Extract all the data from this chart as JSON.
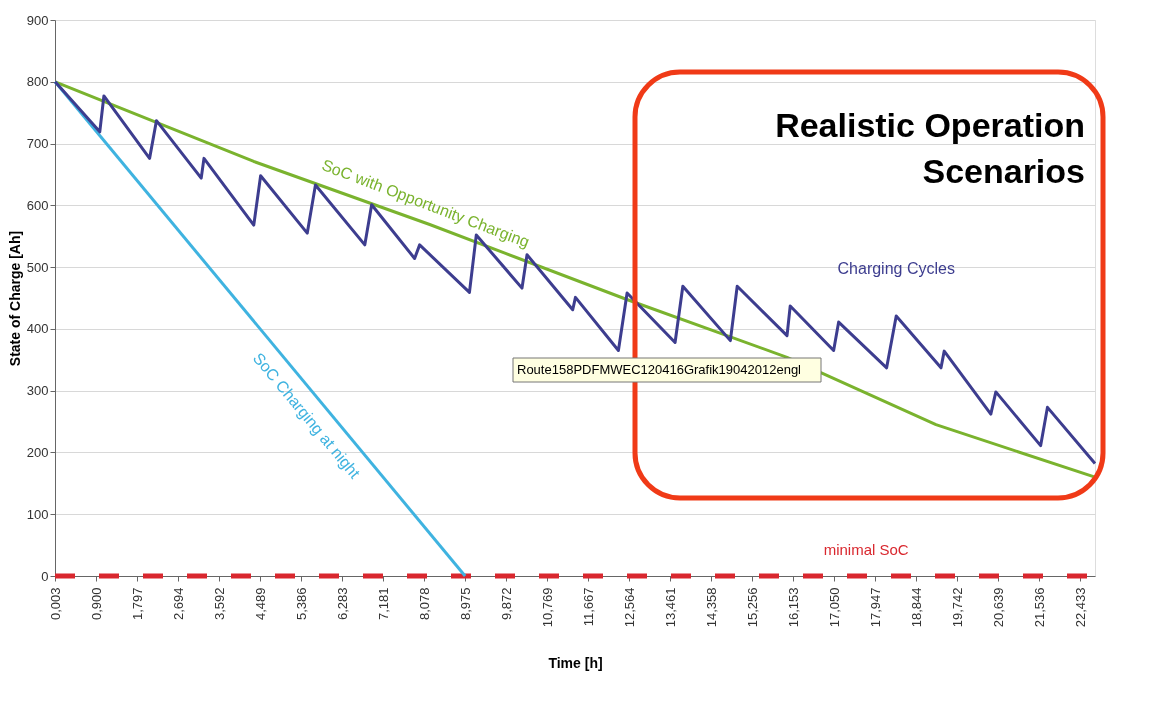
{
  "chart_data": {
    "type": "line",
    "xlabel": "Time [h]",
    "ylabel": "State of Charge [Ah]",
    "xlim": [
      0,
      22.76
    ],
    "ylim": [
      0,
      900
    ],
    "xticks": [
      {
        "value": 0.003,
        "label": "0,003"
      },
      {
        "value": 0.9,
        "label": "0,900"
      },
      {
        "value": 1.797,
        "label": "1,797"
      },
      {
        "value": 2.694,
        "label": "2,694"
      },
      {
        "value": 3.592,
        "label": "3,592"
      },
      {
        "value": 4.489,
        "label": "4,489"
      },
      {
        "value": 5.386,
        "label": "5,386"
      },
      {
        "value": 6.283,
        "label": "6,283"
      },
      {
        "value": 7.181,
        "label": "7,181"
      },
      {
        "value": 8.078,
        "label": "8,078"
      },
      {
        "value": 8.975,
        "label": "8,975"
      },
      {
        "value": 9.872,
        "label": "9,872"
      },
      {
        "value": 10.769,
        "label": "10,769"
      },
      {
        "value": 11.667,
        "label": "11,667"
      },
      {
        "value": 12.564,
        "label": "12,564"
      },
      {
        "value": 13.461,
        "label": "13,461"
      },
      {
        "value": 14.358,
        "label": "14,358"
      },
      {
        "value": 15.256,
        "label": "15,256"
      },
      {
        "value": 16.153,
        "label": "16,153"
      },
      {
        "value": 17.05,
        "label": "17,050"
      },
      {
        "value": 17.947,
        "label": "17,947"
      },
      {
        "value": 18.844,
        "label": "18,844"
      },
      {
        "value": 19.742,
        "label": "19,742"
      },
      {
        "value": 20.639,
        "label": "20,639"
      },
      {
        "value": 21.536,
        "label": "21,536"
      },
      {
        "value": 22.433,
        "label": "22,433"
      }
    ],
    "yticks": [
      0,
      100,
      200,
      300,
      400,
      500,
      600,
      700,
      800,
      900
    ],
    "grid": "y",
    "legend": false,
    "line_style": "solid",
    "marker": "none",
    "series": [
      {
        "name": "SoC with Opportunity Charging",
        "color": "#7ab32e",
        "x": [
          0.003,
          4.35,
          8.2,
          12.5,
          16.02,
          19.28,
          22.76
        ],
        "values": [
          800,
          671,
          569,
          448,
          354,
          245,
          160
        ]
      },
      {
        "name": "SoC Charging at night",
        "color": "#3fb3e0",
        "x": [
          0.003,
          8.975
        ],
        "values": [
          800,
          0
        ]
      },
      {
        "name": "Charging Cycles",
        "color": "#3d3d8f",
        "x": [
          0.003,
          0.98,
          1.07,
          2.07,
          2.22,
          3.2,
          3.26,
          4.35,
          4.5,
          5.52,
          5.7,
          6.78,
          6.93,
          7.87,
          7.98,
          9.07,
          9.22,
          10.22,
          10.33,
          11.33,
          11.39,
          12.33,
          12.52,
          13.57,
          13.74,
          14.78,
          14.93,
          16.02,
          16.09,
          17.04,
          17.15,
          18.2,
          18.41,
          19.39,
          19.46,
          20.48,
          20.59,
          21.57,
          21.72,
          22.76
        ],
        "values": [
          800,
          719,
          777,
          676,
          737,
          644,
          676,
          568,
          648,
          555,
          633,
          536,
          601,
          514,
          536,
          459,
          552,
          466,
          520,
          431,
          451,
          365,
          458,
          378,
          469,
          381,
          469,
          389,
          437,
          365,
          411,
          337,
          421,
          337,
          364,
          262,
          298,
          211,
          273,
          182
        ]
      }
    ],
    "ref_lines": [
      {
        "axis": "y",
        "value": 0,
        "label": "minimal SoC",
        "color": "#d9272e",
        "line_style": "dashed"
      }
    ],
    "annotations": [
      "Realistic Operation\nScenarios",
      "Route158PDFMWEC120416Grafik19042012engl"
    ]
  }
}
